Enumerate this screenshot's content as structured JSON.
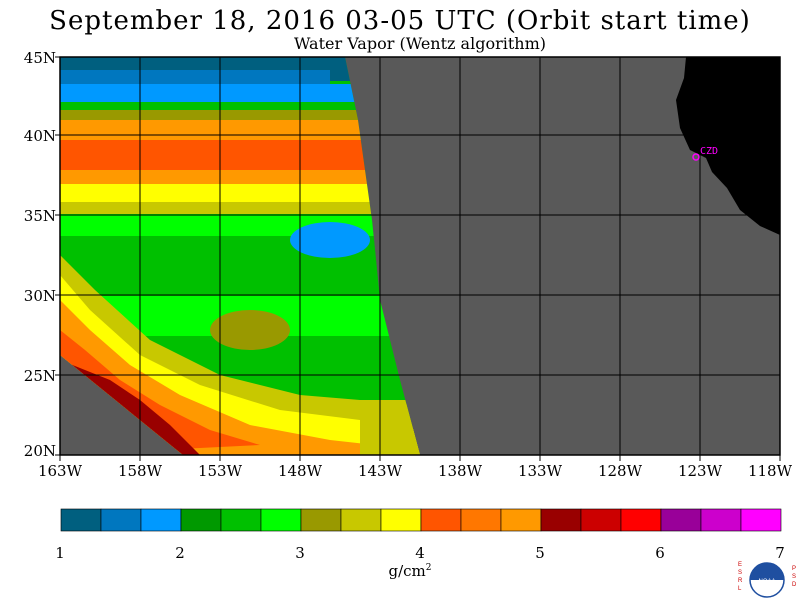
{
  "header": {
    "title": "September 18, 2016  03-05 UTC  (Orbit start time)",
    "subtitle": "Water Vapor (Wentz algorithm)"
  },
  "map": {
    "lat_labels": [
      "45N",
      "40N",
      "35N",
      "30N",
      "25N",
      "20N"
    ],
    "lon_labels": [
      "163W",
      "158W",
      "153W",
      "148W",
      "143W",
      "138W",
      "133W",
      "128W",
      "123W",
      "118W"
    ],
    "station_label": "CZD",
    "colors": {
      "no_data": "#595959",
      "land": "#000000",
      "grid": "#000000",
      "station": "#ff00ff"
    }
  },
  "colorbar": {
    "tick_labels": [
      "1",
      "2",
      "3",
      "4",
      "5",
      "6",
      "7"
    ],
    "unit_main": "g/cm",
    "unit_exp": "2",
    "colors": [
      "#005f7f",
      "#0077bf",
      "#0099ff",
      "#009900",
      "#00c000",
      "#00ff00",
      "#999900",
      "#c8c800",
      "#ffff00",
      "#ff5500",
      "#ff7700",
      "#ff9900",
      "#990000",
      "#cc0000",
      "#ff0000",
      "#990099",
      "#cc00cc",
      "#ff00ff"
    ]
  },
  "logo": {
    "left_letters": "ESRL",
    "right_letters": "PSD",
    "center_text": "NOAA"
  }
}
